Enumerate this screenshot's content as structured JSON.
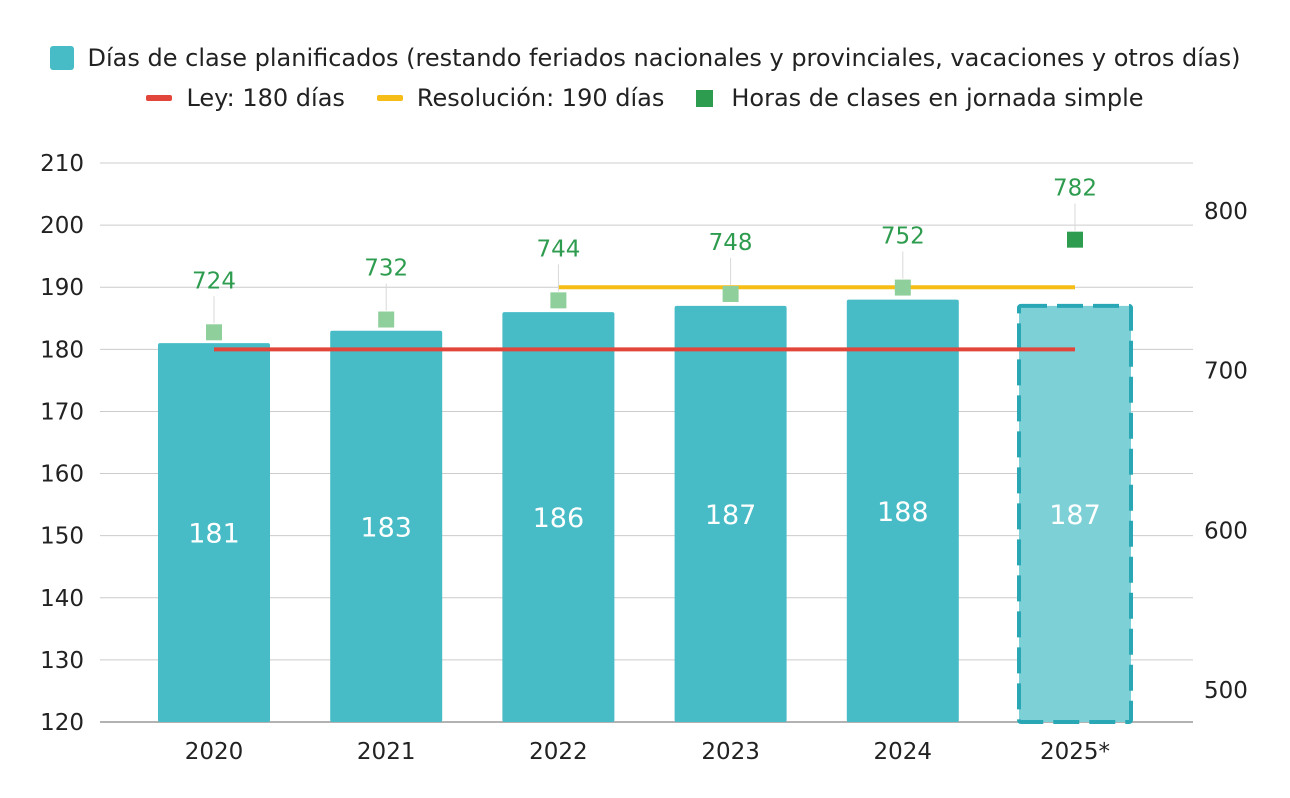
{
  "legend": {
    "bars_label": "Días de clase planificados (restando feriados nacionales y provinciales, vacaciones y otros días)",
    "ley_label": "Ley: 180 días",
    "resolucion_label": "Resolución: 190 días",
    "hours_label": "Horas de clases en jornada simple"
  },
  "chart_data": {
    "type": "bar",
    "categories": [
      "2020",
      "2021",
      "2022",
      "2023",
      "2024",
      "2025*"
    ],
    "series": [
      {
        "name": "Días de clase planificados (restando feriados nacionales y provinciales, vacaciones y otros días)",
        "type": "bar",
        "axis": "left",
        "values": [
          181,
          183,
          186,
          187,
          188,
          187
        ],
        "projected": [
          false,
          false,
          false,
          false,
          false,
          true
        ]
      },
      {
        "name": "Ley: 180 días",
        "type": "line",
        "axis": "left",
        "value": 180,
        "from": "2020",
        "to": "2025*"
      },
      {
        "name": "Resolución: 190 días",
        "type": "line",
        "axis": "left",
        "value": 190,
        "from": "2022",
        "to": "2025*"
      },
      {
        "name": "Horas de clases en jornada simple",
        "type": "scatter",
        "axis": "right",
        "values": [
          724,
          732,
          744,
          748,
          752,
          782
        ]
      }
    ],
    "y_left": {
      "min": 120,
      "max": 210,
      "ticks": [
        120,
        130,
        140,
        150,
        160,
        170,
        180,
        190,
        200,
        210
      ]
    },
    "y_right": {
      "min": 480,
      "max": 830,
      "ticks": [
        500,
        600,
        700,
        800
      ]
    },
    "grid": true,
    "legend_position": "top",
    "colors": {
      "bar": "#47bcc6",
      "bar_projected": "#7dd0d6",
      "bar_projected_border": "#2aa7b5",
      "ley": "#e2463a",
      "resolucion": "#f6bd16",
      "hours": "#2e9c4f",
      "hours_faded": "#8fcf9b"
    }
  }
}
